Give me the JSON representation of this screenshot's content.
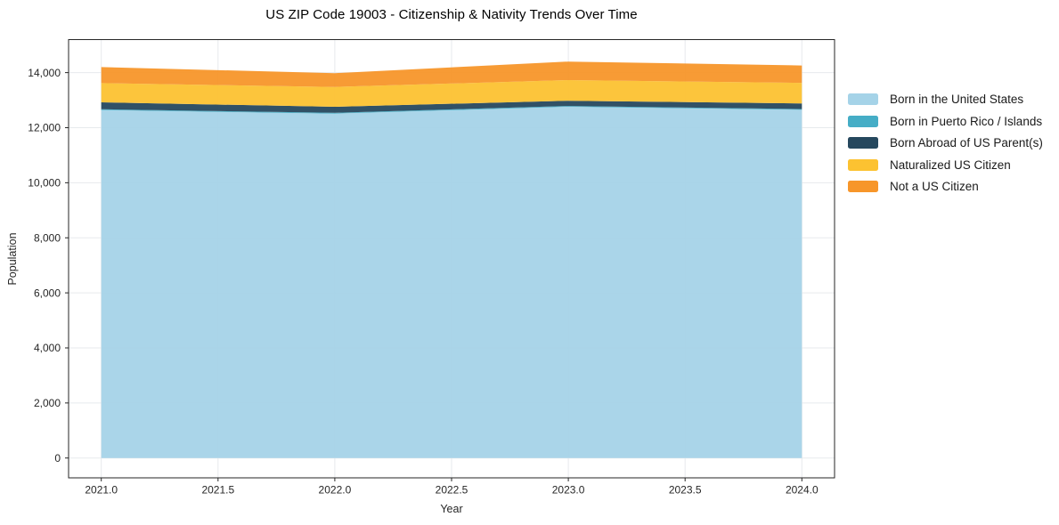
{
  "chart_data": {
    "type": "area",
    "stacked": true,
    "title": "US ZIP Code 19003 - Citizenship & Nativity Trends Over Time",
    "xlabel": "Year",
    "ylabel": "Population",
    "x": [
      2021,
      2022,
      2023,
      2024
    ],
    "series": [
      {
        "name": "Born in the United States",
        "color": "#a5d3e8",
        "values": [
          12640,
          12510,
          12760,
          12650
        ]
      },
      {
        "name": "Born in Puerto Rico / Islands",
        "color": "#45adc6",
        "values": [
          30,
          30,
          30,
          30
        ]
      },
      {
        "name": "Born Abroad of US Parent(s)",
        "color": "#26485e",
        "values": [
          250,
          220,
          190,
          200
        ]
      },
      {
        "name": "Naturalized US Citizen",
        "color": "#fcc231",
        "values": [
          700,
          720,
          750,
          750
        ]
      },
      {
        "name": "Not a US Citizen",
        "color": "#f7962a",
        "values": [
          580,
          500,
          670,
          630
        ]
      }
    ],
    "totals": [
      14200,
      13980,
      14410,
      14260
    ],
    "xlim": [
      2020.86,
      2024.14
    ],
    "ylim": [
      -720,
      15200
    ],
    "x_ticks": {
      "values": [
        2021.0,
        2021.5,
        2022.0,
        2022.5,
        2023.0,
        2023.5,
        2024.0
      ],
      "labels": [
        "2021.0",
        "2021.5",
        "2022.0",
        "2022.5",
        "2023.0",
        "2023.5",
        "2024.0"
      ]
    },
    "y_ticks": {
      "values": [
        0,
        2000,
        4000,
        6000,
        8000,
        10000,
        12000,
        14000
      ],
      "labels": [
        "0",
        "2,000",
        "4,000",
        "6,000",
        "8,000",
        "10,000",
        "12,000",
        "14,000"
      ]
    },
    "grid": true,
    "legend_position": "right",
    "colors": {
      "spine": "#262626",
      "grid": "#e7eaed",
      "tick_label": "#262626",
      "title_text": "#000000"
    }
  }
}
